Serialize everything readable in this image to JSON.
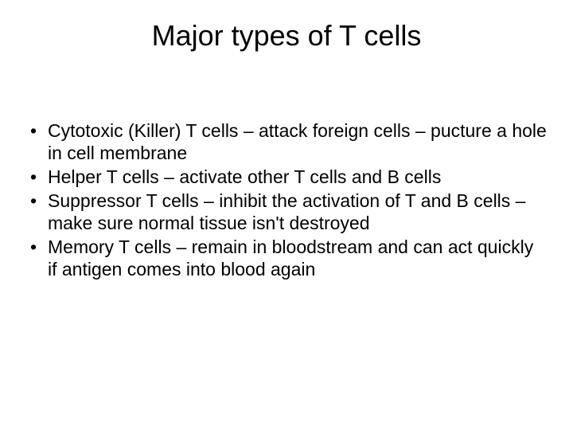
{
  "slide": {
    "title": "Major types of T cells",
    "title_fontsize": 36,
    "title_color": "#000000",
    "background_color": "#ffffff",
    "body_fontsize": 23,
    "body_color": "#000000",
    "bullets": [
      "Cytotoxic (Killer) T cells – attack foreign cells – pucture a hole in cell membrane",
      "Helper T cells – activate other T cells and B cells",
      "Suppressor T cells – inhibit the activation of T and B cells – make sure normal tissue isn't destroyed",
      "Memory T cells – remain in bloodstream and can act quickly if antigen comes into blood again"
    ]
  }
}
